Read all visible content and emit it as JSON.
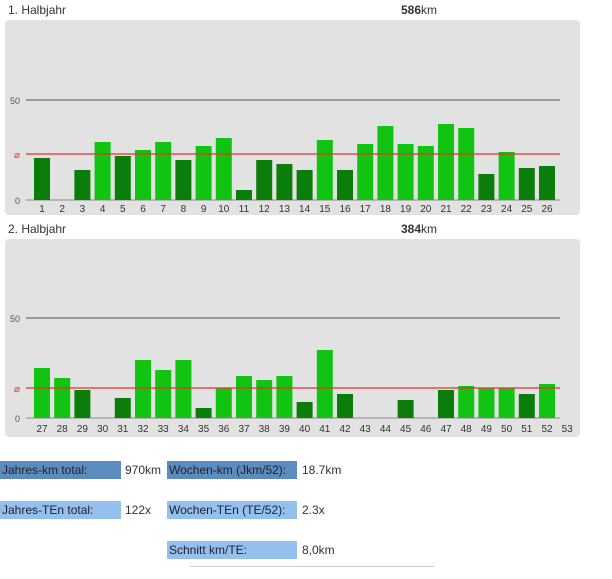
{
  "chart_data": [
    {
      "type": "bar",
      "title": "1. Halbjahr",
      "total_value": "586",
      "total_unit": "km",
      "categories": [
        "1",
        "2",
        "3",
        "4",
        "5",
        "6",
        "7",
        "8",
        "9",
        "10",
        "11",
        "12",
        "13",
        "14",
        "15",
        "16",
        "17",
        "18",
        "19",
        "20",
        "21",
        "22",
        "23",
        "24",
        "25",
        "26"
      ],
      "values": [
        21,
        0,
        15,
        29,
        22,
        25,
        29,
        20,
        27,
        31,
        5,
        20,
        18,
        15,
        30,
        15,
        28,
        37,
        28,
        27,
        38,
        36,
        13,
        24,
        16,
        17
      ],
      "average": 23,
      "average_label": "⌀",
      "yticks": [
        0,
        50
      ],
      "ylim": [
        0,
        60
      ],
      "colors": {
        "above_avg": "#11c411",
        "below_avg": "#0a7d0a",
        "avg_line": "#e83030",
        "grid": "#9a9a9a"
      }
    },
    {
      "type": "bar",
      "title": "2. Halbjahr",
      "total_value": "384",
      "total_unit": "km",
      "categories": [
        "27",
        "28",
        "29",
        "30",
        "31",
        "32",
        "33",
        "34",
        "35",
        "36",
        "37",
        "38",
        "39",
        "40",
        "41",
        "42",
        "43",
        "44",
        "45",
        "46",
        "47",
        "48",
        "49",
        "50",
        "51",
        "52",
        "53"
      ],
      "values": [
        25,
        20,
        14,
        0,
        10,
        29,
        24,
        29,
        5,
        15,
        21,
        19,
        21,
        8,
        34,
        12,
        0,
        0,
        9,
        0,
        14,
        16,
        15,
        15,
        12,
        17,
        0
      ],
      "average": 15,
      "average_label": "⌀",
      "yticks": [
        0,
        50
      ],
      "ylim": [
        0,
        60
      ],
      "colors": {
        "above_avg": "#11c411",
        "below_avg": "#0a7d0a",
        "avg_line": "#e83030",
        "grid": "#9a9a9a"
      }
    }
  ],
  "stats": {
    "jahres_km_label": "Jahres-km total:",
    "jahres_km_value": "970km",
    "wochen_km_label": "Wochen-km (Jkm/52):",
    "wochen_km_value": "18.7km",
    "jahres_ten_label": "Jahres-TEn total:",
    "jahres_ten_value": "122x",
    "wochen_ten_label": "Wochen-TEn (TE/52):",
    "wochen_ten_value": "2.3x",
    "schnitt_label": "Schnitt km/TE:",
    "schnitt_value": "8,0km"
  }
}
